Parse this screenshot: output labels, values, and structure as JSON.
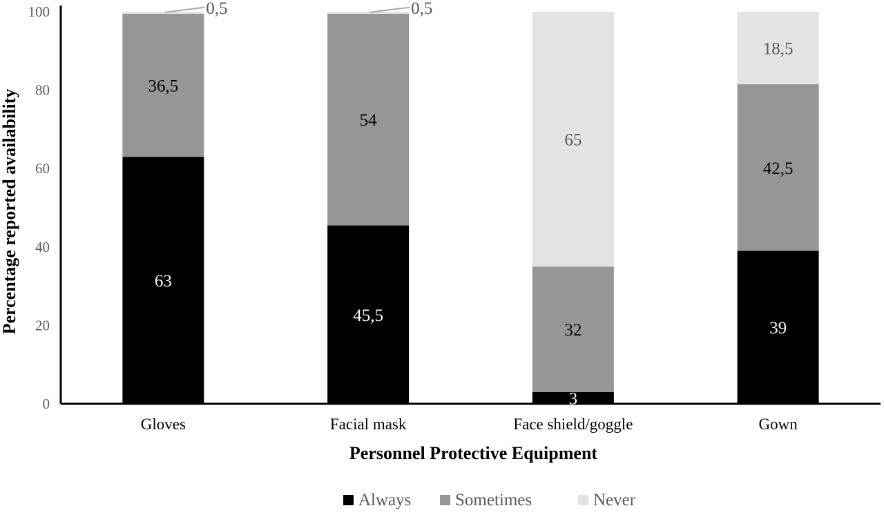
{
  "chart_data": {
    "type": "bar",
    "stacked": true,
    "orientation": "vertical",
    "xlabel": "Personnel Protective Equipment",
    "ylabel": "Percentage reported availability",
    "ylim": [
      0,
      100
    ],
    "yticks": [
      "0",
      "20",
      "40",
      "60",
      "80",
      "100"
    ],
    "categories": [
      "Gloves",
      "Facial mask",
      "Face shield/goggle",
      "Gown"
    ],
    "series": [
      {
        "name": "Always",
        "color": "#000000",
        "label_color": "#ffffff",
        "values": [
          63,
          45.5,
          3,
          39
        ],
        "labels": [
          "63",
          "45,5",
          "3",
          "39"
        ]
      },
      {
        "name": "Sometimes",
        "color": "#969696",
        "label_color": "#000000",
        "values": [
          36.5,
          54,
          32,
          42.5
        ],
        "labels": [
          "36,5",
          "54",
          "32",
          "42,5"
        ]
      },
      {
        "name": "Never",
        "color": "#e3e3e3",
        "label_color": "#595959",
        "values": [
          0.5,
          0.5,
          65,
          18.5
        ],
        "labels": [
          "0,5",
          "0,5",
          "65",
          "18,5"
        ]
      }
    ],
    "grid": false,
    "legend_position": "bottom"
  }
}
